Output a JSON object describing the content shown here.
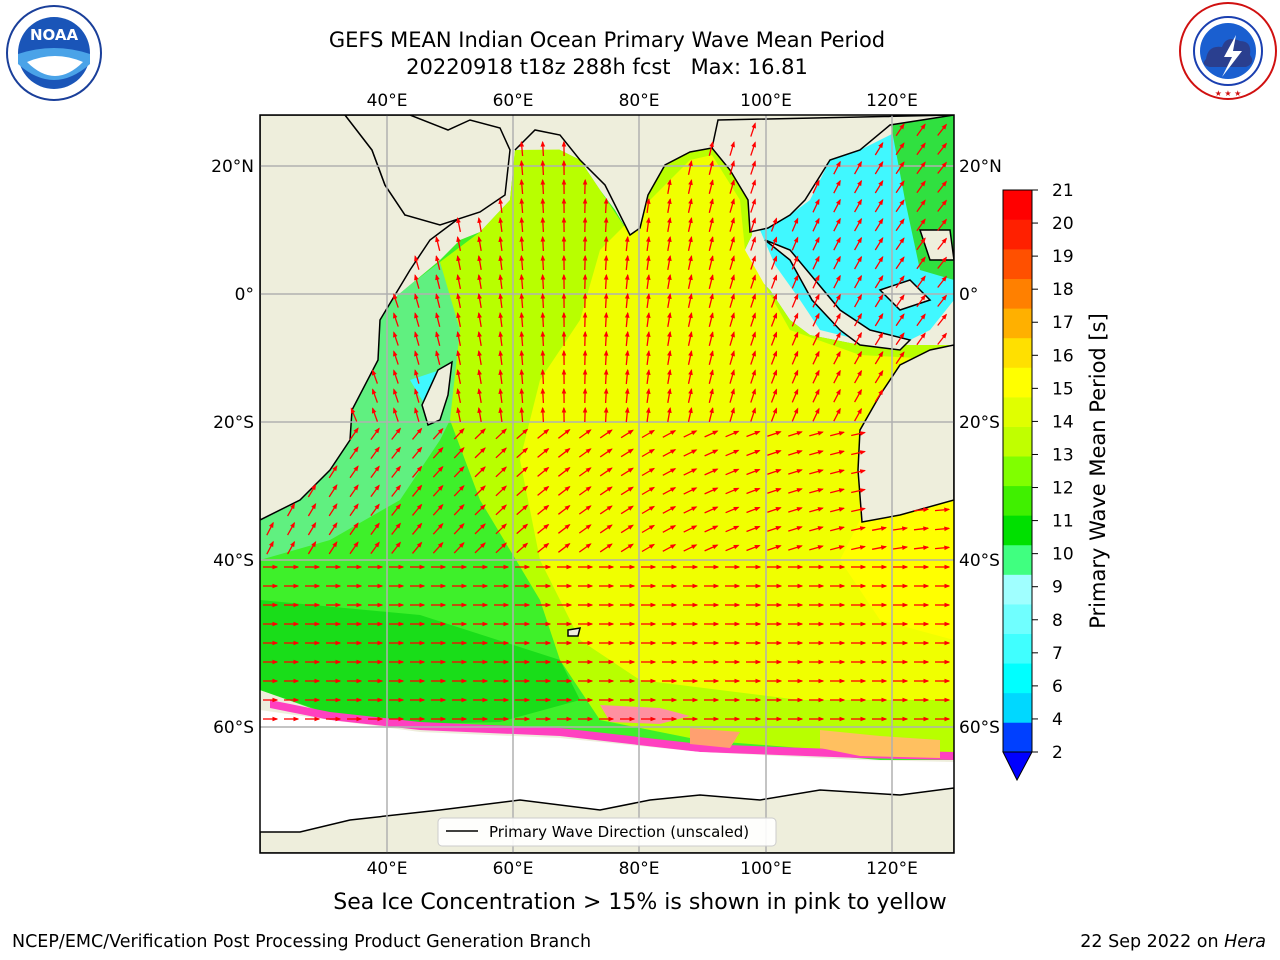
{
  "title_line1": "GEFS MEAN Indian Ocean Primary Wave Mean Period",
  "title_line2": "20220918 t18z 288h fcst   Max: 16.81",
  "logos": {
    "left": {
      "name": "noaa-logo",
      "text": "NOAA",
      "ring_text": "NATIONAL OCEANIC AND ATMOSPHERIC ADMINISTRATION · U.S. DEPARTMENT OF COMMERCE"
    },
    "right": {
      "name": "nws-logo",
      "ring_text": "NATIONAL WEATHER SERVICE"
    }
  },
  "map": {
    "lon_labels_top": [
      "40°E",
      "60°E",
      "80°E",
      "100°E",
      "120°E"
    ],
    "lon_labels_bottom": [
      "40°E",
      "60°E",
      "80°E",
      "100°E",
      "120°E"
    ],
    "lat_labels_left": [
      "20°N",
      "0°",
      "20°S",
      "40°S",
      "60°S"
    ],
    "lat_labels_right": [
      "20°N",
      "0°",
      "20°S",
      "40°S",
      "60°S"
    ],
    "land_color": "#eeeedc",
    "arrow_color": "#ff0000",
    "legend_label": "Primary Wave Direction (unscaled)"
  },
  "colorbar": {
    "label": "Primary Wave Mean Period [s]",
    "ticks": [
      "2",
      "4",
      "6",
      "7",
      "8",
      "9",
      "10",
      "11",
      "12",
      "13",
      "14",
      "15",
      "16",
      "17",
      "18",
      "19",
      "20",
      "21"
    ],
    "colors": [
      "#0040ff",
      "#00d8ff",
      "#00ffff",
      "#40ffff",
      "#70ffff",
      "#a0ffff",
      "#40ff80",
      "#00e000",
      "#40f000",
      "#80ff00",
      "#c0ff00",
      "#e0ff00",
      "#ffff00",
      "#ffe000",
      "#ffb000",
      "#ff8000",
      "#ff5000",
      "#ff2000",
      "#ff0000"
    ],
    "extend_color": "#0000ff"
  },
  "footer_note": "Sea Ice Concentration > 15% is shown in pink to yellow",
  "credit_left": "NCEP/EMC/Verification Post Processing Product Generation Branch",
  "credit_right_date": "22 Sep 2022 on ",
  "credit_right_host": "Hera"
}
